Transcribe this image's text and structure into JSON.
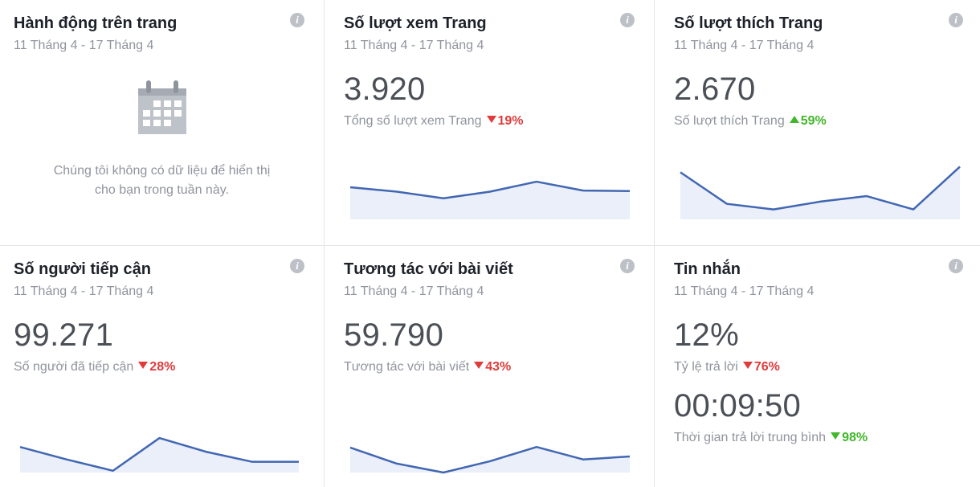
{
  "cards": [
    {
      "title": "Hành động trên trang",
      "date": "11 Tháng 4 - 17 Tháng 4",
      "empty_text_line1": "Chúng tôi không có dữ liệu để hiển thị",
      "empty_text_line2": "cho bạn trong tuần này.",
      "info": "i"
    },
    {
      "title": "Số lượt xem Trang",
      "date": "11 Tháng 4 - 17 Tháng 4",
      "value": "3.920",
      "metric_label": "Tổng số lượt xem Trang",
      "change": "19%",
      "direction": "down",
      "info": "i"
    },
    {
      "title": "Số lượt thích Trang",
      "date": "11 Tháng 4 - 17 Tháng 4",
      "value": "2.670",
      "metric_label": "Số lượt thích Trang",
      "change": "59%",
      "direction": "up",
      "info": "i"
    },
    {
      "title": "Số người tiếp cận",
      "date": "11 Tháng 4 - 17 Tháng 4",
      "value": "99.271",
      "metric_label": "Số người đã tiếp cận",
      "change": "28%",
      "direction": "down",
      "info": "i"
    },
    {
      "title": "Tương tác với bài viết",
      "date": "11 Tháng 4 - 17 Tháng 4",
      "value": "59.790",
      "metric_label": "Tương tác với bài viết",
      "change": "43%",
      "direction": "down",
      "info": "i"
    },
    {
      "title": "Tin nhắn",
      "date": "11 Tháng 4 - 17 Tháng 4",
      "value": "12%",
      "metric_label": "Tỷ lệ trả lời",
      "change": "76%",
      "direction": "down",
      "value2": "00:09:50",
      "metric_label2": "Thời gian trả lời trung bình",
      "change2": "98%",
      "direction2": "down-good",
      "info": "i"
    }
  ],
  "sparklines": {
    "page_views": [
      0.58,
      0.5,
      0.38,
      0.5,
      0.68,
      0.52,
      0.51
    ],
    "page_likes": [
      0.85,
      0.28,
      0.18,
      0.32,
      0.42,
      0.18,
      0.95
    ],
    "reach": [
      0.43,
      0.22,
      0.03,
      0.58,
      0.35,
      0.18,
      0.18
    ],
    "engagement": [
      0.42,
      0.15,
      0.0,
      0.19,
      0.43,
      0.22,
      0.27
    ]
  },
  "colors": {
    "line": "#4267b2",
    "fill": "#eaeff9",
    "down": "#e03b3b",
    "up": "#42b72a"
  },
  "icons": {
    "empty_state": "calendar-icon",
    "info": "info-icon"
  }
}
